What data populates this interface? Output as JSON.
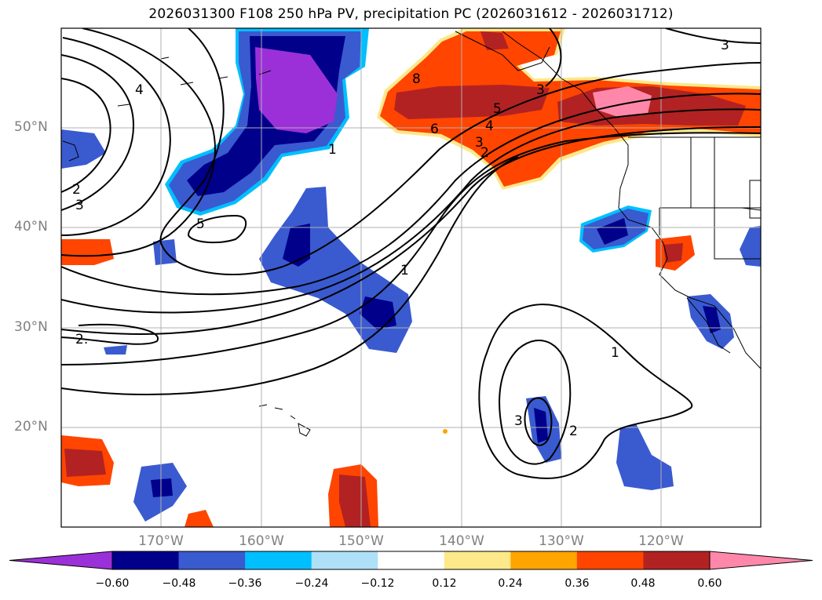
{
  "title": "2026031300 F108 250 hPa PV, precipitation PC (2026031612 - 2026031712)",
  "lat_labels": [
    "50°N",
    "40°N",
    "30°N",
    "20°N"
  ],
  "lon_labels": [
    "170°W",
    "160°W",
    "150°W",
    "140°W",
    "130°W",
    "120°W"
  ],
  "colorbar": {
    "ticks": [
      "−0.60",
      "−0.48",
      "−0.36",
      "−0.24",
      "−0.12",
      "0.12",
      "0.24",
      "0.36",
      "0.48",
      "0.60"
    ],
    "colors": [
      "#9b30d8",
      "#00008b",
      "#3a5ad0",
      "#00bfff",
      "#aee0f8",
      "#ffffff",
      "#fde88a",
      "#ffa500",
      "#ff4500",
      "#b22222",
      "#ff88aa"
    ]
  },
  "contour_labels": [
    "4",
    "2",
    "3",
    "5",
    "1",
    "2.",
    "8",
    "6",
    "5",
    "4",
    "3",
    "2",
    "3",
    "1",
    "1",
    "3",
    "2",
    "3"
  ],
  "colors": {
    "purple": "#9b30d8",
    "navy": "#00008b",
    "blue": "#3a5ad0",
    "cyan": "#00bfff",
    "light_blue": "#aee0f8",
    "yellow": "#fde88a",
    "orange": "#ffa500",
    "red_orange": "#ff4500",
    "dark_red": "#b22222",
    "pink": "#ff88aa"
  }
}
